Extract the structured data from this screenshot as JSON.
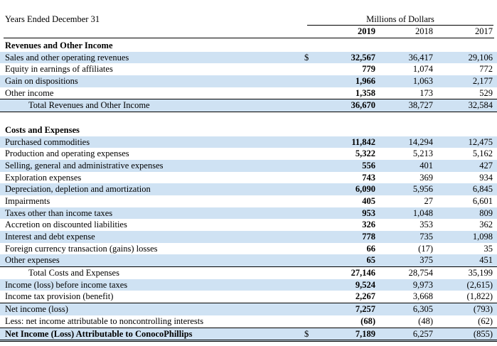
{
  "header": {
    "period_label": "Years Ended December 31",
    "unit_label": "Millions of Dollars",
    "years": [
      "2019",
      "2018",
      "2017"
    ]
  },
  "rows": [
    {
      "label": "Revenues and Other Income",
      "type": "section"
    },
    {
      "label": "Sales and other operating revenues",
      "dollar": "$",
      "v2019": "32,567",
      "v2018": "36,417",
      "v2017": "29,106",
      "shade": true
    },
    {
      "label": "Equity in earnings of affiliates",
      "v2019": "779",
      "v2018": "1,074",
      "v2017": "772"
    },
    {
      "label": "Gain on dispositions",
      "v2019": "1,966",
      "v2018": "1,063",
      "v2017": "2,177",
      "shade": true
    },
    {
      "label": "Other income",
      "v2019": "1,358",
      "v2018": "173",
      "v2017": "529"
    },
    {
      "label": "Total Revenues and Other Income",
      "v2019": "36,670",
      "v2018": "38,727",
      "v2017": "32,584",
      "indent": true,
      "shade": true,
      "ruleTop": true,
      "ruleBottom": true
    },
    {
      "type": "gap"
    },
    {
      "label": "Costs and Expenses",
      "type": "section"
    },
    {
      "label": "Purchased commodities",
      "v2019": "11,842",
      "v2018": "14,294",
      "v2017": "12,475",
      "shade": true
    },
    {
      "label": "Production and operating expenses",
      "v2019": "5,322",
      "v2018": "5,213",
      "v2017": "5,162"
    },
    {
      "label": "Selling, general and administrative expenses",
      "v2019": "556",
      "v2018": "401",
      "v2017": "427",
      "shade": true
    },
    {
      "label": "Exploration expenses",
      "v2019": "743",
      "v2018": "369",
      "v2017": "934"
    },
    {
      "label": "Depreciation, depletion and amortization",
      "v2019": "6,090",
      "v2018": "5,956",
      "v2017": "6,845",
      "shade": true
    },
    {
      "label": "Impairments",
      "v2019": "405",
      "v2018": "27",
      "v2017": "6,601"
    },
    {
      "label": "Taxes other than income taxes",
      "v2019": "953",
      "v2018": "1,048",
      "v2017": "809",
      "shade": true
    },
    {
      "label": "Accretion on discounted liabilities",
      "v2019": "326",
      "v2018": "353",
      "v2017": "362"
    },
    {
      "label": "Interest and debt expense",
      "v2019": "778",
      "v2018": "735",
      "v2017": "1,098",
      "shade": true
    },
    {
      "label": "Foreign currency transaction (gains) losses",
      "v2019": "66",
      "v2018": "(17)",
      "v2017": "35"
    },
    {
      "label": "Other expenses",
      "v2019": "65",
      "v2018": "375",
      "v2017": "451",
      "shade": true
    },
    {
      "label": "Total Costs and Expenses",
      "v2019": "27,146",
      "v2018": "28,754",
      "v2017": "35,199",
      "indent": true,
      "ruleTop": true
    },
    {
      "label": "Income (loss) before income taxes",
      "v2019": "9,524",
      "v2018": "9,973",
      "v2017": "(2,615)",
      "shade": true
    },
    {
      "label": "Income tax provision (benefit)",
      "v2019": "2,267",
      "v2018": "3,668",
      "v2017": "(1,822)"
    },
    {
      "label": "Net income (loss)",
      "v2019": "7,257",
      "v2018": "6,305",
      "v2017": "(793)",
      "shade": true,
      "ruleTop": true
    },
    {
      "label": "Less: net income attributable to noncontrolling interests",
      "v2019": "(68)",
      "v2018": "(48)",
      "v2017": "(62)"
    },
    {
      "label": "Net Income (Loss) Attributable to ConocoPhillips",
      "dollar": "$",
      "v2019": "7,189",
      "v2018": "6,257",
      "v2017": "(855)",
      "shade": true,
      "final": true,
      "ruleTop": true,
      "doubleBottom": true
    }
  ]
}
